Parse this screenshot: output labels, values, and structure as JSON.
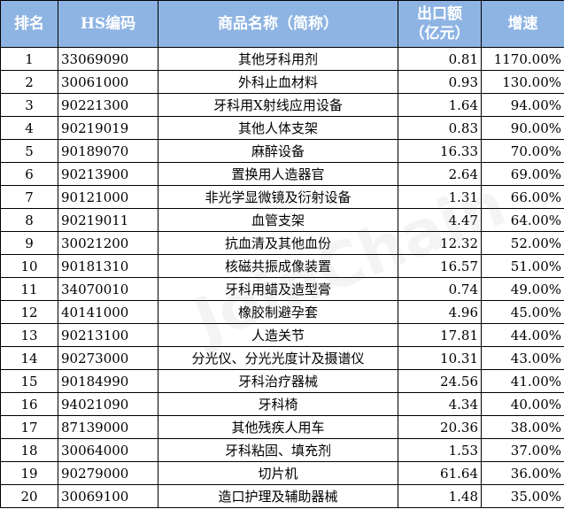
{
  "headers": {
    "rank": "排名",
    "hs": "HS编码",
    "name": "商品名称（简称）",
    "export_line1": "出口额",
    "export_line2": "（亿元）",
    "growth": "增速"
  },
  "watermark": "JoinChain",
  "rows": [
    {
      "rank": "1",
      "hs": "33069090",
      "name": "其他牙科用剂",
      "export": "0.81",
      "growth": "1170.00%"
    },
    {
      "rank": "2",
      "hs": "30061000",
      "name": "外科止血材料",
      "export": "0.93",
      "growth": "130.00%"
    },
    {
      "rank": "3",
      "hs": "90221300",
      "name": "牙科用X射线应用设备",
      "export": "1.64",
      "growth": "94.00%"
    },
    {
      "rank": "4",
      "hs": "90219019",
      "name": "其他人体支架",
      "export": "0.83",
      "growth": "90.00%"
    },
    {
      "rank": "5",
      "hs": "90189070",
      "name": "麻醉设备",
      "export": "16.33",
      "growth": "70.00%"
    },
    {
      "rank": "6",
      "hs": "90213900",
      "name": "置换用人造器官",
      "export": "2.64",
      "growth": "69.00%"
    },
    {
      "rank": "7",
      "hs": "90121000",
      "name": "非光学显微镜及衍射设备",
      "export": "1.31",
      "growth": "66.00%"
    },
    {
      "rank": "8",
      "hs": "90219011",
      "name": "血管支架",
      "export": "4.47",
      "growth": "64.00%"
    },
    {
      "rank": "9",
      "hs": "30021200",
      "name": "抗血清及其他血份",
      "export": "12.32",
      "growth": "52.00%"
    },
    {
      "rank": "10",
      "hs": "90181310",
      "name": "核磁共振成像装置",
      "export": "16.57",
      "growth": "51.00%"
    },
    {
      "rank": "11",
      "hs": "34070010",
      "name": "牙科用蜡及造型膏",
      "export": "0.74",
      "growth": "49.00%"
    },
    {
      "rank": "12",
      "hs": "40141000",
      "name": "橡胶制避孕套",
      "export": "4.96",
      "growth": "45.00%"
    },
    {
      "rank": "13",
      "hs": "90213100",
      "name": "人造关节",
      "export": "17.81",
      "growth": "44.00%"
    },
    {
      "rank": "14",
      "hs": "90273000",
      "name": "分光仪、分光光度计及摄谱仪",
      "export": "10.31",
      "growth": "43.00%"
    },
    {
      "rank": "15",
      "hs": "90184990",
      "name": "牙科治疗器械",
      "export": "24.56",
      "growth": "41.00%"
    },
    {
      "rank": "16",
      "hs": "94021090",
      "name": "牙科椅",
      "export": "4.34",
      "growth": "40.00%"
    },
    {
      "rank": "17",
      "hs": "87139000",
      "name": "其他残疾人用车",
      "export": "20.36",
      "growth": "38.00%"
    },
    {
      "rank": "18",
      "hs": "30064000",
      "name": "牙科粘固、填充剂",
      "export": "1.53",
      "growth": "37.00%"
    },
    {
      "rank": "19",
      "hs": "90279000",
      "name": "切片机",
      "export": "61.64",
      "growth": "36.00%"
    },
    {
      "rank": "20",
      "hs": "30069100",
      "name": "造口护理及辅助器械",
      "export": "1.48",
      "growth": "35.00%"
    }
  ]
}
